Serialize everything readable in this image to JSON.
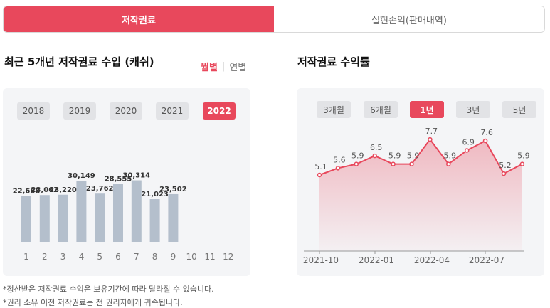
{
  "tabs": {
    "active": "저작권료",
    "inactive": "실현손익(판매내역)"
  },
  "left": {
    "title": "최근 5개년 저작권료 수입 (캐쉬)",
    "toggle": {
      "monthly": "월별",
      "yearly": "연별"
    },
    "years": [
      "2018",
      "2019",
      "2020",
      "2021",
      "2022"
    ],
    "active_year": "2022"
  },
  "right": {
    "title": "저작권료 수익률",
    "periods": [
      "3개월",
      "6개월",
      "1년",
      "3년",
      "5년"
    ],
    "active_period": "1년"
  },
  "notes": [
    "*정산받은 저작권료 수익은 보유기간에 따라 달라질 수 있습니다.",
    "*권리 소유 이전 저작권료는 전 권리자에게 귀속됩니다."
  ],
  "colors": {
    "accent": "#e8485c",
    "bar": "#b4bfcc",
    "panel": "#f4f5f7"
  },
  "chart_data": [
    {
      "type": "bar",
      "categories": [
        "1",
        "2",
        "3",
        "4",
        "5",
        "6",
        "7",
        "8",
        "9",
        "10",
        "11",
        "12"
      ],
      "values": [
        22668,
        23062,
        23220,
        30149,
        23762,
        28555,
        30314,
        21023,
        23502,
        null,
        null,
        null
      ],
      "labels": [
        "22,668",
        "23,062",
        "23,220",
        "30,149",
        "23,762",
        "28,555",
        "30,314",
        "21,023",
        "23,502",
        "",
        "",
        ""
      ],
      "ylim": [
        0,
        35000
      ]
    },
    {
      "type": "area",
      "x_ticks": [
        "2021-10",
        "2022-01",
        "2022-04",
        "2022-07"
      ],
      "values": [
        5.1,
        5.6,
        5.9,
        6.5,
        5.9,
        5.9,
        7.7,
        5.9,
        6.9,
        7.6,
        5.2,
        5.9
      ],
      "labels": [
        "5.1",
        "5.6",
        "5.9",
        "6.5",
        "5.9",
        "5.9",
        "7.7",
        "5.9",
        "6.9",
        "7.6",
        "5.2",
        "5.9"
      ]
    }
  ]
}
